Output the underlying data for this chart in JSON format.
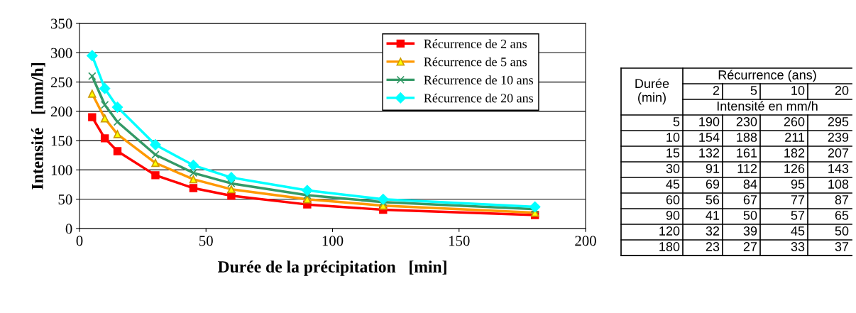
{
  "chart_data": {
    "type": "line",
    "xlabel": "Durée de la précipitation   [min]",
    "ylabel": "Intensité   [mm/h]",
    "x": [
      5,
      10,
      15,
      30,
      45,
      60,
      90,
      120,
      180
    ],
    "series": [
      {
        "name": "Récurrence de 2 ans",
        "color": "#ff0000",
        "marker": "square",
        "values": [
          190,
          154,
          132,
          91,
          69,
          56,
          41,
          32,
          23
        ]
      },
      {
        "name": "Récurrence de 5 ans",
        "color": "#ff9900",
        "marker": "triangle",
        "values": [
          230,
          188,
          161,
          112,
          84,
          67,
          50,
          39,
          27
        ]
      },
      {
        "name": "Récurrence de 10 ans",
        "color": "#339966",
        "marker": "cross",
        "values": [
          260,
          211,
          182,
          126,
          95,
          77,
          57,
          45,
          33
        ]
      },
      {
        "name": "Récurrence de 20 ans",
        "color": "#00ffff",
        "marker": "diamond",
        "values": [
          295,
          239,
          207,
          143,
          108,
          87,
          65,
          50,
          37
        ]
      }
    ],
    "xlim": [
      0,
      200
    ],
    "xticks": [
      0,
      50,
      100,
      150,
      200
    ],
    "ylim": [
      0,
      350
    ],
    "yticks": [
      0,
      50,
      100,
      150,
      200,
      250,
      300,
      350
    ],
    "grid": "y",
    "legend": "top right",
    "line_style": "solid",
    "annotations": [
      "Durée (min)",
      "Récurrence (ans)",
      "2",
      "5",
      "10",
      "20",
      "Intensité en mm/h",
      "5",
      "190",
      "230",
      "260",
      "295",
      "10",
      "154",
      "188",
      "211",
      "239",
      "15",
      "132",
      "161",
      "182",
      "207",
      "30",
      "91",
      "112",
      "126",
      "143",
      "45",
      "69",
      "84",
      "95",
      "108",
      "60",
      "56",
      "67",
      "77",
      "87",
      "90",
      "41",
      "50",
      "57",
      "65",
      "120",
      "32",
      "39",
      "45",
      "50",
      "180",
      "23",
      "27",
      "33",
      "37"
    ]
  }
}
